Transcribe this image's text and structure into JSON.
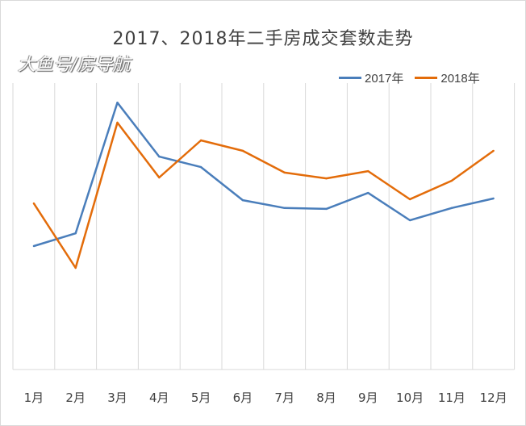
{
  "chart_data": {
    "type": "line",
    "title": "2017、2018年二手房成交套数走势",
    "categories": [
      "1月",
      "2月",
      "3月",
      "4月",
      "5月",
      "6月",
      "7月",
      "8月",
      "9月",
      "10月",
      "11月",
      "12月"
    ],
    "series": [
      {
        "name": "2017年",
        "color": "#4a7ebb",
        "values": [
          42.5,
          46.9,
          91.9,
          73.3,
          69.7,
          58.3,
          55.6,
          55.3,
          60.8,
          51.4,
          55.6,
          58.9
        ]
      },
      {
        "name": "2018年",
        "color": "#e36c0a",
        "values": [
          57.2,
          35.0,
          85.0,
          66.1,
          78.9,
          75.3,
          67.8,
          65.8,
          68.3,
          58.6,
          65.0,
          75.3
        ]
      }
    ],
    "ylim": [
      0,
      100
    ],
    "y_axis_labels_shown": false,
    "grid": "vertical",
    "legend": "top-right"
  },
  "watermark": "大鱼号/房导航"
}
